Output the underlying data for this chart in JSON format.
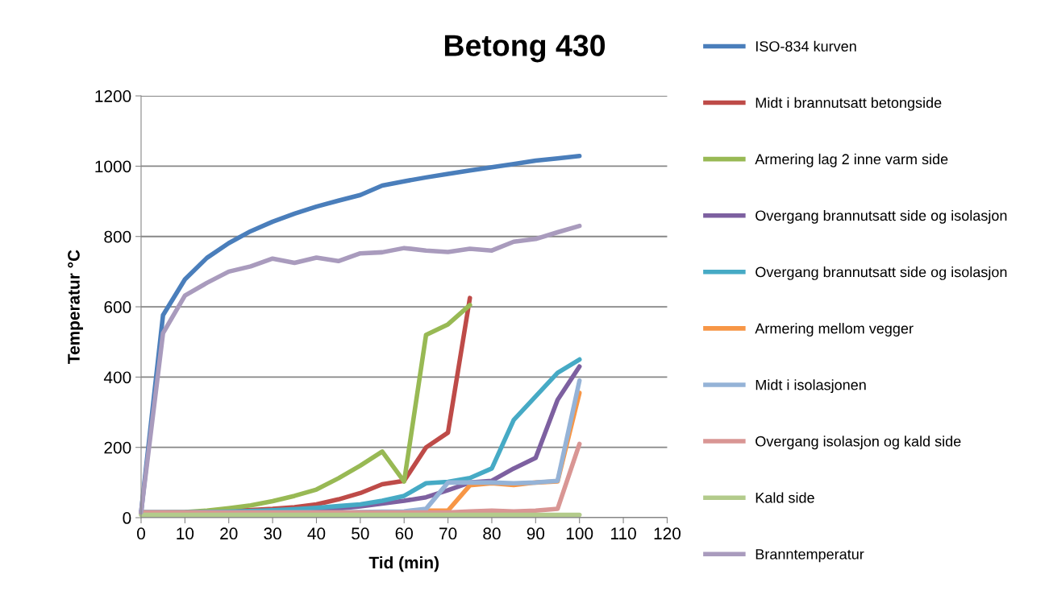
{
  "chart_data": {
    "type": "line",
    "title": "Betong 430",
    "xlabel": "Tid (min)",
    "ylabel": "Temperatur °C",
    "x": [
      0,
      5,
      10,
      15,
      20,
      25,
      30,
      35,
      40,
      45,
      50,
      55,
      60,
      65,
      70,
      75,
      80,
      85,
      90,
      95,
      100
    ],
    "xlim": [
      0,
      120
    ],
    "xticks": [
      0,
      10,
      20,
      30,
      40,
      50,
      60,
      70,
      80,
      90,
      100,
      110,
      120
    ],
    "ylim": [
      0,
      1200
    ],
    "yticks": [
      0,
      200,
      400,
      600,
      800,
      1000,
      1200
    ],
    "grid": "y",
    "legend": "right",
    "marker": "none",
    "line_style": "solid",
    "series": [
      {
        "name": "ISO-834 kurven",
        "color": "#4a7ebb",
        "values": [
          15,
          576,
          678,
          739,
          781,
          815,
          842,
          865,
          885,
          902,
          918,
          945,
          957,
          968,
          978,
          988,
          997,
          1006,
          1016,
          1022,
          1029
        ]
      },
      {
        "name": "Midt i brannutsatt betongside",
        "color": "#be4b48",
        "values": [
          15,
          15,
          15,
          18,
          20,
          22,
          25,
          30,
          38,
          52,
          70,
          95,
          105,
          200,
          242,
          625,
          null,
          null,
          null,
          null,
          null
        ]
      },
      {
        "name": "Armering lag 2 inne varm side",
        "color": "#98b954",
        "values": [
          15,
          15,
          16,
          20,
          27,
          35,
          47,
          62,
          80,
          112,
          148,
          188,
          103,
          520,
          550,
          605,
          null,
          null,
          null,
          null,
          null
        ]
      },
      {
        "name": "Overgang brannutsatt side og isolasjon",
        "color": "#7d60a0",
        "values": [
          15,
          15,
          15,
          15,
          16,
          17,
          18,
          20,
          22,
          26,
          32,
          40,
          48,
          58,
          78,
          100,
          105,
          140,
          170,
          335,
          430
        ]
      },
      {
        "name": "Overgang brannutsatt side og isolasjon",
        "color": "#46aac5",
        "values": [
          15,
          15,
          15,
          16,
          17,
          19,
          21,
          24,
          28,
          33,
          38,
          48,
          62,
          98,
          102,
          113,
          140,
          278,
          345,
          412,
          450
        ]
      },
      {
        "name": "Armering mellom vegger",
        "color": "#f79646",
        "values": [
          null,
          null,
          null,
          null,
          null,
          null,
          null,
          null,
          null,
          null,
          null,
          null,
          null,
          20,
          20,
          92,
          98,
          93,
          100,
          103,
          355
        ]
      },
      {
        "name": "Midt i isolasjonen",
        "color": "#95b3d7",
        "values": [
          15,
          15,
          15,
          15,
          15,
          15,
          15,
          15,
          15,
          15,
          16,
          17,
          18,
          25,
          100,
          100,
          100,
          98,
          100,
          105,
          390
        ]
      },
      {
        "name": "Overgang isolasjon og kald side",
        "color": "#d99694",
        "values": [
          15,
          15,
          15,
          15,
          15,
          15,
          15,
          15,
          15,
          15,
          15,
          15,
          15,
          15,
          15,
          18,
          20,
          18,
          20,
          25,
          210
        ]
      },
      {
        "name": "Kald side",
        "color": "#b3cb8b",
        "values": [
          8,
          8,
          8,
          8,
          8,
          8,
          8,
          8,
          8,
          8,
          8,
          8,
          8,
          8,
          8,
          8,
          8,
          8,
          8,
          8,
          8
        ]
      },
      {
        "name": "Branntemperatur",
        "color": "#a99bbd",
        "values": [
          15,
          525,
          632,
          668,
          700,
          715,
          737,
          725,
          740,
          730,
          752,
          755,
          767,
          760,
          756,
          765,
          760,
          785,
          793,
          812,
          830
        ]
      }
    ]
  }
}
